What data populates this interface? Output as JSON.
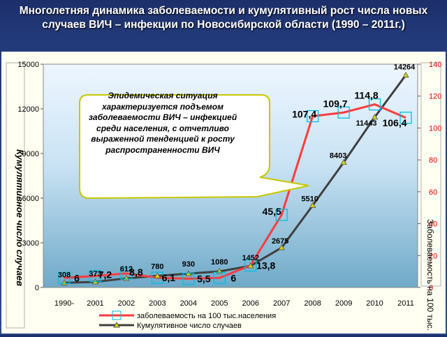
{
  "header": {
    "title": "Многолетняя динамика заболеваемости и кумулятивный рост числа новых случаев ВИЧ – инфекции по Новосибирской области (1990 – 2011г.)"
  },
  "callout": {
    "text": "Эпидемическая ситуация характеризуется подъемом заболеваемости ВИЧ – инфекцией среди населения, с отчетливо выраженной тенденцией к росту распространенности ВИЧ"
  },
  "chart_data": {
    "type": "line",
    "categories": [
      "1990-",
      "2001",
      "2002",
      "2003",
      "2004",
      "2005",
      "2006",
      "2007",
      "2008",
      "2009",
      "2010",
      "2011"
    ],
    "ylabel_left": "Кумулятивное число случаев",
    "ylabel_right": "Заболеваемость на 100 тыс.",
    "ylim_left": [
      0,
      15000
    ],
    "yticks_left": [
      "0",
      "3000",
      "6000",
      "9000",
      "12000",
      "15000"
    ],
    "ylim_right": [
      0,
      140
    ],
    "yticks_right": [
      "0",
      "20",
      "40",
      "60",
      "80",
      "100",
      "120",
      "140"
    ],
    "legend_position": "bottom",
    "series": [
      {
        "name": "заболеваемость на 100 тыс.населения",
        "axis": "right",
        "color": "#ff3b3b",
        "values": [
          6,
          7.2,
          8.8,
          6.1,
          5.5,
          6,
          13.8,
          45.5,
          107.4,
          109.7,
          114.8,
          106.4
        ],
        "labels": [
          "6",
          "7,2",
          "8,8",
          "6,1",
          "5,5",
          "6",
          "13,8",
          "45,5",
          "107,4",
          "109,7",
          "114,8",
          "106,4"
        ]
      },
      {
        "name": "Кумулятивное число случаев",
        "axis": "left",
        "color": "#404040",
        "values": [
          308,
          373,
          612,
          780,
          930,
          1080,
          1452,
          2675,
          5510,
          8403,
          11443,
          14264
        ],
        "labels": [
          "308",
          "373",
          "612",
          "780",
          "930",
          "1080",
          "1452",
          "2675",
          "5510",
          "8403",
          "11443",
          "14264"
        ]
      }
    ]
  }
}
